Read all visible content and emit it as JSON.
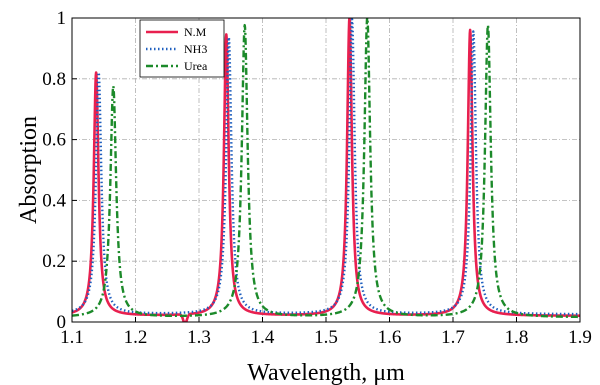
{
  "chart_data": {
    "type": "line",
    "xlabel": "Wavelength, μm",
    "ylabel": "Absorption",
    "xlim": [
      1.1,
      1.9
    ],
    "ylim": [
      0,
      1
    ],
    "x_ticks": [
      "1.1",
      "1.2",
      "1.3",
      "1.4",
      "1.5",
      "1.6",
      "1.7",
      "1.8",
      "1.9"
    ],
    "y_ticks": [
      "0",
      "0.2",
      "0.4",
      "0.6",
      "0.8",
      "1"
    ],
    "grid": true,
    "legend_position": "top-left",
    "series": [
      {
        "name": "N.M",
        "color": "#e8204f",
        "style": "solid",
        "baseline": 0.02,
        "peaks": [
          {
            "x": 1.138,
            "y": 0.82,
            "width": 0.0045
          },
          {
            "x": 1.343,
            "y": 0.945,
            "width": 0.0045
          },
          {
            "x": 1.537,
            "y": 1.0,
            "width": 0.0045
          },
          {
            "x": 1.727,
            "y": 0.96,
            "width": 0.0045
          }
        ],
        "dips": [
          {
            "x": 1.278,
            "y": 0.0,
            "width": 0.004
          }
        ]
      },
      {
        "name": "NH3",
        "color": "#1f5fbf",
        "style": "dotted",
        "baseline": 0.025,
        "peaks": [
          {
            "x": 1.142,
            "y": 0.82,
            "width": 0.005
          },
          {
            "x": 1.347,
            "y": 0.935,
            "width": 0.005
          },
          {
            "x": 1.541,
            "y": 0.995,
            "width": 0.005
          },
          {
            "x": 1.732,
            "y": 0.955,
            "width": 0.005
          }
        ],
        "dips": []
      },
      {
        "name": "Urea",
        "color": "#1c8a2a",
        "style": "dashdot",
        "baseline": 0.015,
        "peaks": [
          {
            "x": 1.165,
            "y": 0.775,
            "width": 0.0055
          },
          {
            "x": 1.372,
            "y": 0.975,
            "width": 0.0055
          },
          {
            "x": 1.565,
            "y": 1.0,
            "width": 0.0055
          },
          {
            "x": 1.755,
            "y": 0.975,
            "width": 0.0055
          }
        ],
        "dips": []
      }
    ]
  }
}
